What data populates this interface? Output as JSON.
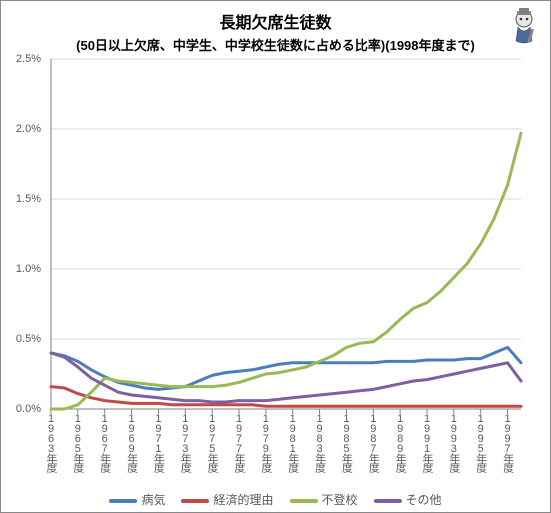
{
  "title": "長期欠席生徒数",
  "subtitle": "(50日以上欠席、中学生、中学校生徒数に占める比率)(1998年度まで)",
  "chart": {
    "type": "line",
    "background_color": "#ffffff",
    "grid_color": "#d9d9d9",
    "axis_color": "#808080",
    "ylim": [
      0,
      2.5
    ],
    "ytick_step": 0.5,
    "y_format": "percent",
    "yticks": [
      "0.0%",
      "0.5%",
      "1.0%",
      "1.5%",
      "2.0%",
      "2.5%"
    ],
    "line_width": 3,
    "x_categories": [
      "1963年度",
      "1965年度",
      "1967年度",
      "1969年度",
      "1971年度",
      "1973年度",
      "1975年度",
      "1977年度",
      "1979年度",
      "1981年度",
      "1983年度",
      "1985年度",
      "1987年度",
      "1989年度",
      "1991年度",
      "1993年度",
      "1995年度",
      "1997年度"
    ],
    "x_step_years": 2,
    "series": [
      {
        "name": "病気",
        "color": "#4a7ebb",
        "values": [
          0.4,
          0.38,
          0.34,
          0.28,
          0.23,
          0.19,
          0.17,
          0.15,
          0.14,
          0.15,
          0.16,
          0.2,
          0.24,
          0.26,
          0.27,
          0.28,
          0.3,
          0.32,
          0.33,
          0.33,
          0.33,
          0.33,
          0.33,
          0.33,
          0.33,
          0.34,
          0.34,
          0.34,
          0.35,
          0.35,
          0.35,
          0.36,
          0.36,
          0.4,
          0.44,
          0.33
        ]
      },
      {
        "name": "経済的理由",
        "color": "#be4b48",
        "values": [
          0.16,
          0.15,
          0.11,
          0.08,
          0.06,
          0.05,
          0.04,
          0.04,
          0.04,
          0.03,
          0.03,
          0.03,
          0.03,
          0.03,
          0.03,
          0.03,
          0.02,
          0.02,
          0.02,
          0.02,
          0.02,
          0.02,
          0.02,
          0.02,
          0.02,
          0.02,
          0.02,
          0.02,
          0.02,
          0.02,
          0.02,
          0.02,
          0.02,
          0.02,
          0.02,
          0.02
        ]
      },
      {
        "name": "不登校",
        "color": "#98b954",
        "values": [
          0.0,
          0.0,
          0.03,
          0.12,
          0.22,
          0.2,
          0.19,
          0.18,
          0.17,
          0.16,
          0.16,
          0.16,
          0.16,
          0.17,
          0.19,
          0.22,
          0.25,
          0.26,
          0.28,
          0.3,
          0.34,
          0.38,
          0.44,
          0.47,
          0.48,
          0.55,
          0.64,
          0.72,
          0.76,
          0.84,
          0.94,
          1.04,
          1.18,
          1.36,
          1.6,
          1.97
        ]
      },
      {
        "name": "その他",
        "color": "#7d60a0",
        "values": [
          0.4,
          0.37,
          0.3,
          0.22,
          0.17,
          0.12,
          0.1,
          0.09,
          0.08,
          0.07,
          0.06,
          0.06,
          0.05,
          0.05,
          0.06,
          0.06,
          0.06,
          0.07,
          0.08,
          0.09,
          0.1,
          0.11,
          0.12,
          0.13,
          0.14,
          0.16,
          0.18,
          0.2,
          0.21,
          0.23,
          0.25,
          0.27,
          0.29,
          0.31,
          0.33,
          0.2
        ]
      }
    ]
  },
  "legend_labels": [
    "病気",
    "経済的理由",
    "不登校",
    "その他"
  ]
}
